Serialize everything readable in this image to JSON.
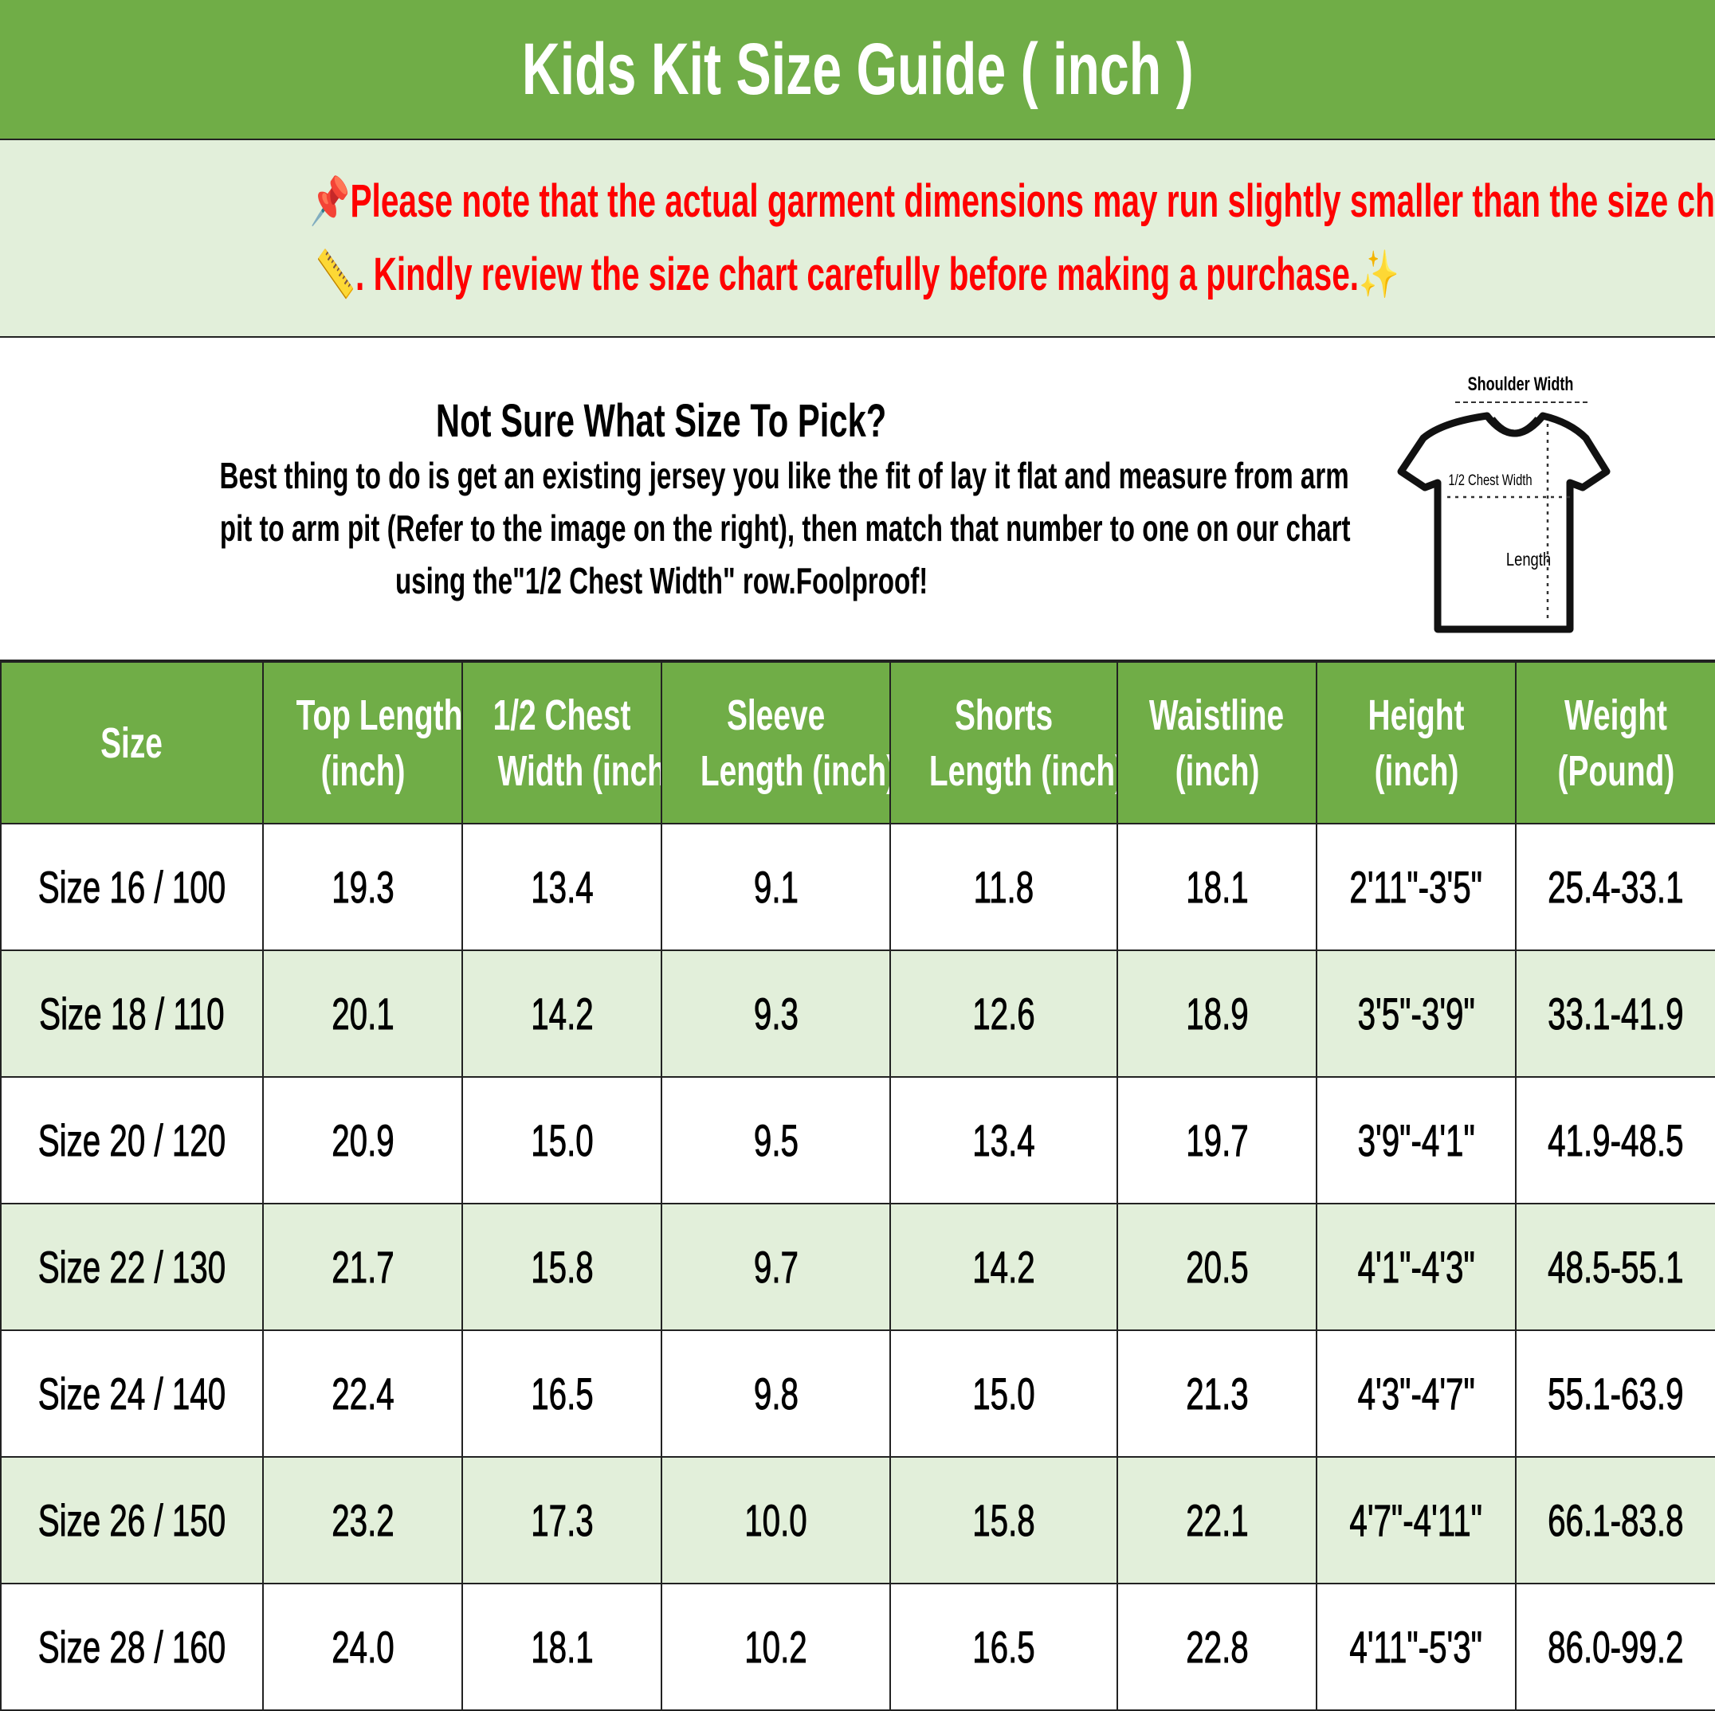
{
  "title": "Kids Kit Size Guide ( inch )",
  "note": {
    "line1": "Please note that the actual garment dimensions may run slightly smaller than the size chart",
    "line2": ". Kindly review the size chart carefully before making a purchase.",
    "icons": [
      "pushpin-icon",
      "ruler-icon",
      "sparkles-icon"
    ],
    "color": "#ff0000"
  },
  "info": {
    "heading": "Not Sure What Size To Pick?",
    "body_line1": "Best thing to do is get an existing jersey you like the fit of lay it flat and measure from arm",
    "body_line2": "pit to arm pit (Refer to the image on the right), then match that number to one on our chart",
    "body_line3": "using the\"1/2 Chest Width\" row.Foolproof!",
    "diagram": {
      "shoulder": "Shoulder Width",
      "chest": "1/2 Chest Width",
      "length": "Length"
    }
  },
  "colors": {
    "header_green": "#70ad47",
    "row_alt": "#e2efda"
  },
  "table": {
    "headers": [
      [
        "Size"
      ],
      [
        "Top Length",
        "(inch)"
      ],
      [
        "1/2 Chest",
        "Width (inch)"
      ],
      [
        "Sleeve",
        "Length (inch)"
      ],
      [
        "Shorts",
        "Length (inch)"
      ],
      [
        "Waistline",
        "(inch)"
      ],
      [
        "Height",
        "(inch)"
      ],
      [
        "Weight",
        "(Pound)"
      ]
    ],
    "rows": [
      [
        "Size 16 / 100",
        "19.3",
        "13.4",
        "9.1",
        "11.8",
        "18.1",
        "2'11\"-3'5\"",
        "25.4-33.1"
      ],
      [
        "Size 18 / 110",
        "20.1",
        "14.2",
        "9.3",
        "12.6",
        "18.9",
        "3'5\"-3'9\"",
        "33.1-41.9"
      ],
      [
        "Size 20 / 120",
        "20.9",
        "15.0",
        "9.5",
        "13.4",
        "19.7",
        "3'9\"-4'1\"",
        "41.9-48.5"
      ],
      [
        "Size 22 / 130",
        "21.7",
        "15.8",
        "9.7",
        "14.2",
        "20.5",
        "4'1\"-4'3\"",
        "48.5-55.1"
      ],
      [
        "Size 24 / 140",
        "22.4",
        "16.5",
        "9.8",
        "15.0",
        "21.3",
        "4'3\"-4'7\"",
        "55.1-63.9"
      ],
      [
        "Size 26 / 150",
        "23.2",
        "17.3",
        "10.0",
        "15.8",
        "22.1",
        "4'7\"-4'11\"",
        "66.1-83.8"
      ],
      [
        "Size 28 / 160",
        "24.0",
        "18.1",
        "10.2",
        "16.5",
        "22.8",
        "4'11\"-5'3\"",
        "86.0-99.2"
      ]
    ]
  }
}
